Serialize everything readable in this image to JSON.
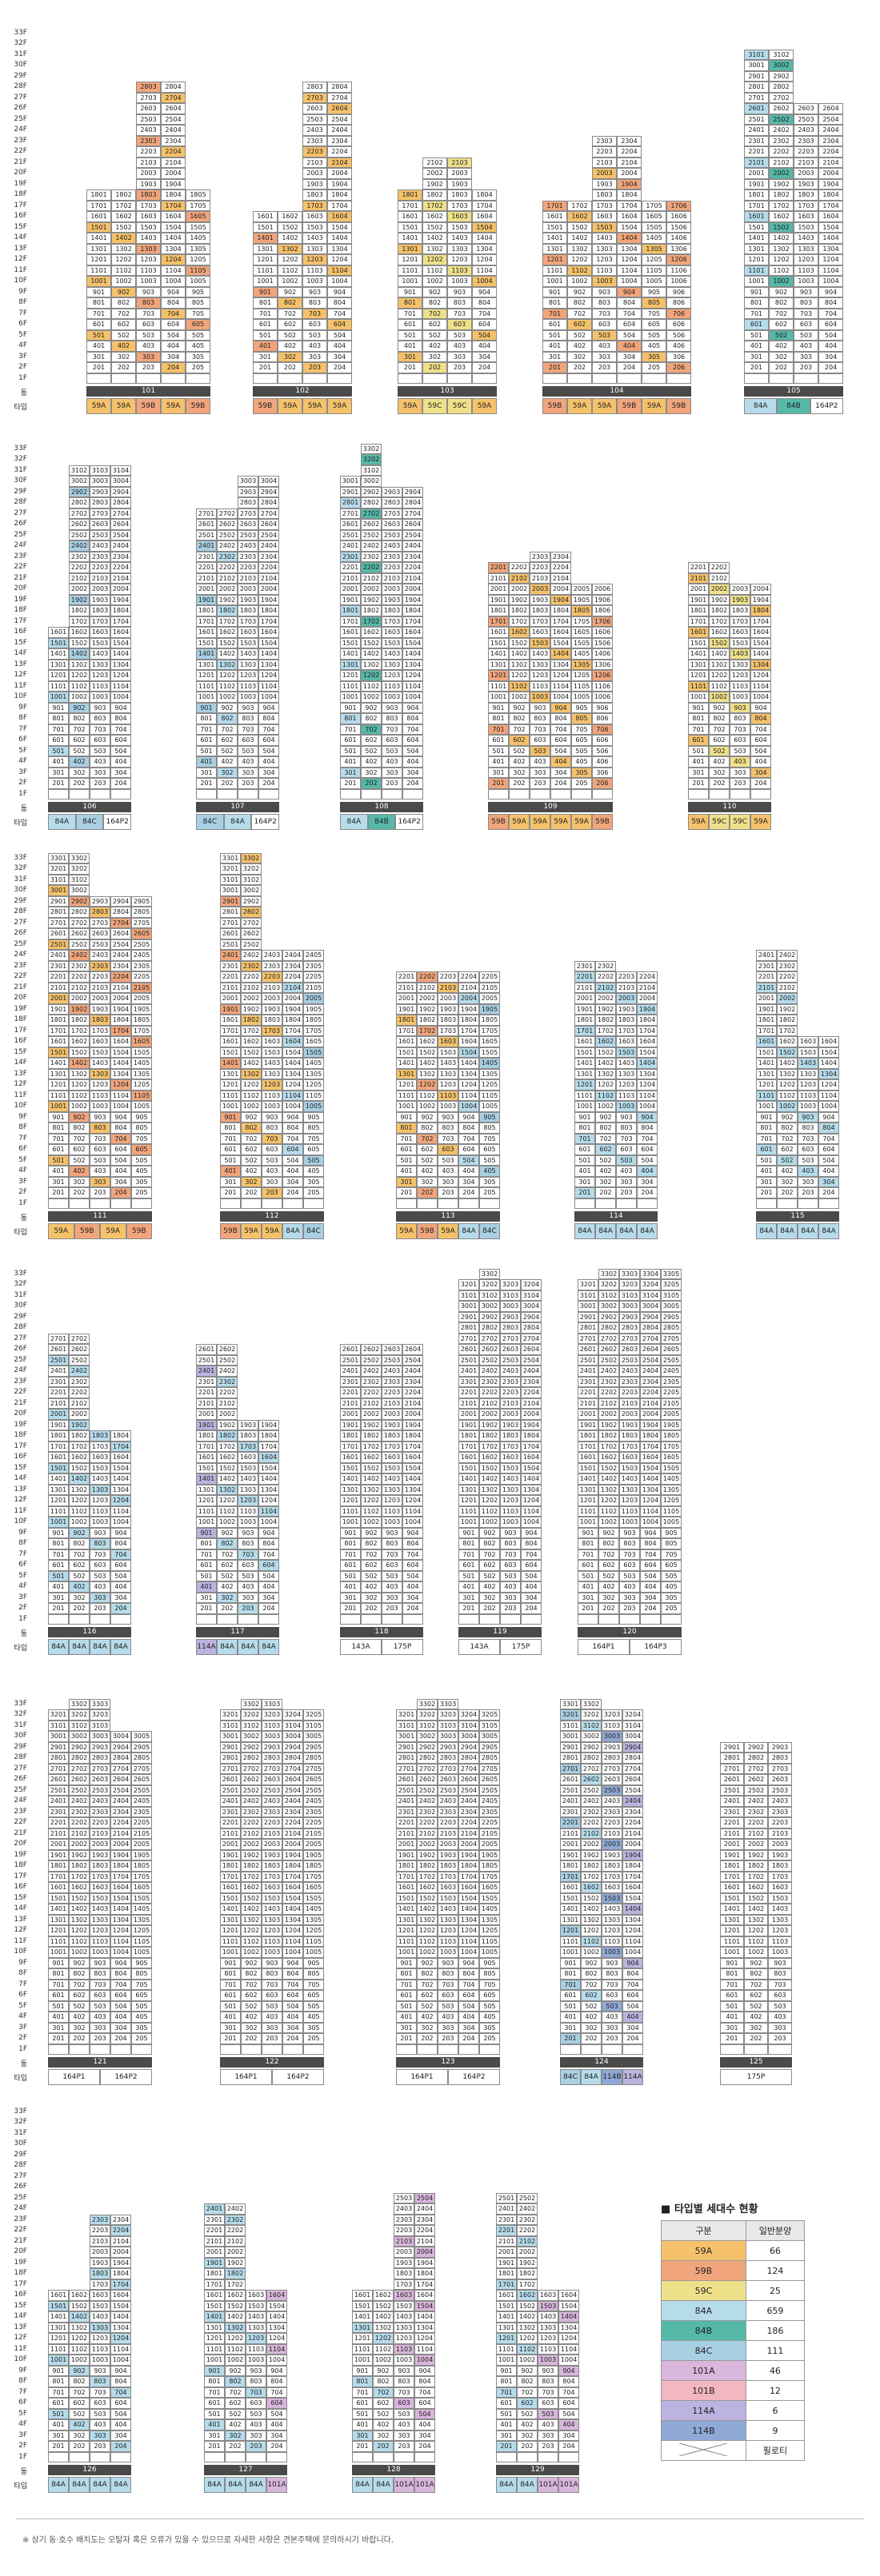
{
  "labels": {
    "dong": "동",
    "type": "타입"
  },
  "floor_labels": [
    "33F",
    "32F",
    "31F",
    "30F",
    "29F",
    "28F",
    "27F",
    "26F",
    "25F",
    "24F",
    "23F",
    "22F",
    "21F",
    "20F",
    "19F",
    "18F",
    "17F",
    "16F",
    "15F",
    "14F",
    "13F",
    "12F",
    "11F",
    "10F",
    "9F",
    "8F",
    "7F",
    "6F",
    "5F",
    "4F",
    "3F",
    "2F",
    "1F"
  ],
  "colors": {
    "59A": "#f5c26b",
    "59B": "#f1a57c",
    "59C": "#efe08a",
    "84A": "#b6dceb",
    "84B": "#55b8a8",
    "84C": "#a9cfe3",
    "101A": "#d9b6dc",
    "101B": "#f3b7c2",
    "114A": "#bdb3e0",
    "114B": "#8fa9d6",
    "plain": "#ffffff"
  },
  "buildings": [
    {
      "no": "101",
      "floors": 18,
      "highest": [
        18,
        18,
        28,
        28,
        18
      ],
      "types": [
        "59A",
        "59A",
        "59B",
        "59A",
        "59B"
      ]
    },
    {
      "no": "102",
      "floors": 16,
      "highest": [
        16,
        16,
        28,
        28
      ],
      "types": [
        "59B",
        "59A",
        "59A",
        "59A"
      ]
    },
    {
      "no": "103",
      "floors": 18,
      "highest": [
        18,
        21,
        21,
        18
      ],
      "types": [
        "59A",
        "59C",
        "59C",
        "59A"
      ]
    },
    {
      "no": "104",
      "floors": 17,
      "highest": [
        17,
        17,
        23,
        23,
        17,
        17
      ],
      "types": [
        "59B",
        "59A",
        "59A",
        "59B",
        "59A",
        "59B"
      ]
    },
    {
      "no": "105",
      "floors": 31,
      "highest": [
        31,
        31,
        26,
        26
      ],
      "types": [
        "84A",
        "84B",
        "164P2"
      ]
    },
    {
      "no": "106",
      "floors": 16,
      "highest": [
        16,
        31,
        31,
        31
      ],
      "types": [
        "84A",
        "84C",
        "164P2"
      ]
    },
    {
      "no": "107",
      "floors": 27,
      "highest": [
        27,
        27,
        30,
        30
      ],
      "types": [
        "84C",
        "84A",
        "164P2"
      ]
    },
    {
      "no": "108",
      "floors": 33,
      "highest": [
        30,
        33,
        29,
        29
      ],
      "types": [
        "84A",
        "84B",
        "164P2"
      ]
    },
    {
      "no": "109",
      "floors": 22,
      "highest": [
        22,
        22,
        23,
        23,
        20,
        20
      ],
      "types": [
        "59B",
        "59A",
        "59A",
        "59A",
        "59A",
        "59B"
      ]
    },
    {
      "no": "110",
      "floors": 22,
      "highest": [
        22,
        22,
        20,
        20
      ],
      "types": [
        "59A",
        "59C",
        "59C",
        "59A"
      ]
    },
    {
      "no": "111",
      "floors": 33,
      "highest": [
        33,
        33,
        29,
        29,
        29
      ],
      "types": [
        "59A",
        "59B",
        "59A",
        "59B"
      ]
    },
    {
      "no": "112",
      "floors": 33,
      "highest": [
        33,
        33,
        24,
        24,
        24
      ],
      "types": [
        "59B",
        "59A",
        "59A",
        "84A",
        "84C"
      ]
    },
    {
      "no": "113",
      "floors": 22,
      "highest": [
        22,
        22,
        22,
        22,
        22
      ],
      "types": [
        "59A",
        "59B",
        "59A",
        "84A",
        "84C"
      ]
    },
    {
      "no": "114",
      "floors": 23,
      "highest": [
        23,
        23,
        22,
        22
      ],
      "types": [
        "84A",
        "84A",
        "84A",
        "84A"
      ]
    },
    {
      "no": "115",
      "floors": 24,
      "highest": [
        24,
        24,
        16,
        16
      ],
      "types": [
        "84A",
        "84A",
        "84A",
        "84A"
      ]
    },
    {
      "no": "116",
      "floors": 27,
      "highest": [
        27,
        27,
        18,
        18
      ],
      "types": [
        "84A",
        "84A",
        "84A",
        "84A"
      ]
    },
    {
      "no": "117",
      "floors": 26,
      "highest": [
        26,
        26,
        19,
        19
      ],
      "types": [
        "114A",
        "84A",
        "84A",
        "84A"
      ]
    },
    {
      "no": "118",
      "floors": 26,
      "highest": [
        26,
        26,
        26,
        26
      ],
      "types": [
        "143A",
        "175P"
      ]
    },
    {
      "no": "119",
      "floors": 33,
      "highest": [
        32,
        33,
        32,
        32
      ],
      "types": [
        "143A",
        "175P"
      ]
    },
    {
      "no": "120",
      "floors": 33,
      "highest": [
        32,
        33,
        33,
        33,
        33
      ],
      "types": [
        "164P1",
        "164P3"
      ]
    },
    {
      "no": "121",
      "floors": 33,
      "highest": [
        32,
        33,
        33,
        30,
        30
      ],
      "types": [
        "164P1",
        "164P2"
      ]
    },
    {
      "no": "122",
      "floors": 33,
      "highest": [
        32,
        33,
        33,
        32,
        32
      ],
      "types": [
        "164P1",
        "164P2"
      ]
    },
    {
      "no": "123",
      "floors": 33,
      "highest": [
        32,
        33,
        33,
        32,
        32
      ],
      "types": [
        "164P1",
        "164P2"
      ]
    },
    {
      "no": "124",
      "floors": 33,
      "highest": [
        33,
        33,
        32,
        32
      ],
      "types": [
        "84C",
        "84A",
        "114B",
        "114A"
      ]
    },
    {
      "no": "125",
      "floors": 29,
      "highest": [
        29,
        29,
        29
      ],
      "types": [
        "175P"
      ]
    },
    {
      "no": "126",
      "floors": 23,
      "highest": [
        16,
        16,
        23,
        23
      ],
      "types": [
        "84A",
        "84A",
        "84A",
        "84A"
      ]
    },
    {
      "no": "127",
      "floors": 24,
      "highest": [
        24,
        24,
        16,
        16
      ],
      "types": [
        "84A",
        "84A",
        "84A",
        "101A"
      ]
    },
    {
      "no": "128",
      "floors": 25,
      "highest": [
        16,
        16,
        25,
        25
      ],
      "types": [
        "84A",
        "84A",
        "101A",
        "101A"
      ]
    },
    {
      "no": "129",
      "floors": 25,
      "highest": [
        25,
        25,
        16,
        16
      ],
      "types": [
        "84A",
        "84A",
        "101A",
        "101A"
      ]
    }
  ],
  "legend": {
    "title": "타입별 세대수 현황",
    "col_type": "구분",
    "col_count": "일반분양",
    "rows": [
      {
        "type": "59A",
        "count": "66"
      },
      {
        "type": "59B",
        "count": "124"
      },
      {
        "type": "59C",
        "count": "25"
      },
      {
        "type": "84A",
        "count": "659"
      },
      {
        "type": "84B",
        "count": "186"
      },
      {
        "type": "84C",
        "count": "111"
      },
      {
        "type": "101A",
        "count": "46"
      },
      {
        "type": "101B",
        "count": "12"
      },
      {
        "type": "114A",
        "count": "6"
      },
      {
        "type": "114B",
        "count": "9"
      }
    ],
    "pilotis": "필로티"
  },
  "note": "※ 상기 동·호수 배치도는 오탈자 혹은 오류가 있을 수 있으므로 자세한 사항은 견본주택에 문의하시기 바랍니다."
}
